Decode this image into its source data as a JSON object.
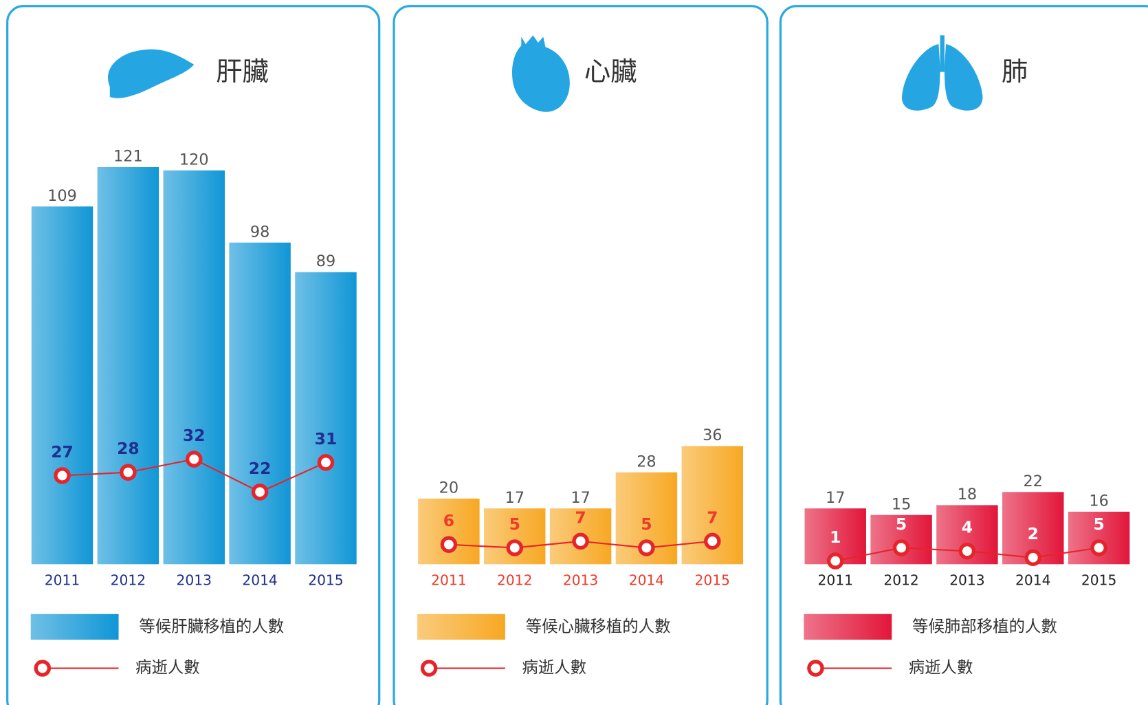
{
  "chart_data": [
    {
      "type": "bar_line",
      "title": "肝臟",
      "categories": [
        "2011",
        "2012",
        "2013",
        "2014",
        "2015"
      ],
      "series": [
        {
          "name": "等候肝臟移植的人數",
          "type": "bar",
          "color": "#1096d6",
          "values": [
            109,
            121,
            120,
            98,
            89
          ]
        },
        {
          "name": "病逝人數",
          "type": "line",
          "color": "#e5252a",
          "values": [
            27,
            28,
            32,
            22,
            31
          ]
        }
      ]
    },
    {
      "type": "bar_line",
      "title": "心臟",
      "categories": [
        "2011",
        "2012",
        "2013",
        "2014",
        "2015"
      ],
      "series": [
        {
          "name": "等候心臟移植的人數",
          "type": "bar",
          "color": "#f7a823",
          "values": [
            20,
            17,
            17,
            28,
            36
          ]
        },
        {
          "name": "病逝人數",
          "type": "line",
          "color": "#e5252a",
          "values": [
            6,
            5,
            7,
            5,
            7
          ]
        }
      ]
    },
    {
      "type": "bar_line",
      "title": "肺",
      "categories": [
        "2011",
        "2012",
        "2013",
        "2014",
        "2015"
      ],
      "series": [
        {
          "name": "等候肺部移植的人數",
          "type": "bar",
          "color": "#e2163a",
          "values": [
            17,
            15,
            18,
            22,
            16
          ]
        },
        {
          "name": "病逝人數",
          "type": "line",
          "color": "#e5252a",
          "values": [
            1,
            5,
            4,
            2,
            5
          ]
        }
      ]
    }
  ]
}
